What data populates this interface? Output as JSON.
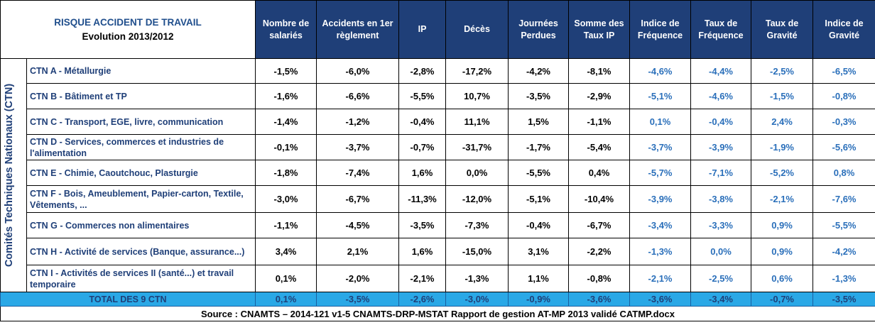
{
  "title": "RISQUE ACCIDENT DE TRAVAIL",
  "subtitle": "Evolution 2013/2012",
  "side_label": "Comités Techniques Nationaux  (CTN)",
  "columns": [
    "Nombre de salariés",
    "Accidents en 1er règlement",
    "IP",
    "Décès",
    "Journées Perdues",
    "Somme des Taux IP",
    "Indice de Fréquence",
    "Taux de Fréquence",
    "Taux de Gravité",
    "Indice de Gravité"
  ],
  "rows": [
    {
      "label": "CTN A - Métallurgie",
      "values": [
        "-1,5%",
        "-6,0%",
        "-2,8%",
        "-17,2%",
        "-4,2%",
        "-8,1%",
        "-4,6%",
        "-4,4%",
        "-2,5%",
        "-6,5%"
      ]
    },
    {
      "label": "CTN B - Bâtiment et TP",
      "values": [
        "-1,6%",
        "-6,6%",
        "-5,5%",
        "10,7%",
        "-3,5%",
        "-2,9%",
        "-5,1%",
        "-4,6%",
        "-1,5%",
        "-0,8%"
      ]
    },
    {
      "label": "CTN C - Transport, EGE, livre, communication",
      "values": [
        "-1,4%",
        "-1,2%",
        "-0,4%",
        "11,1%",
        "1,5%",
        "-1,1%",
        "0,1%",
        "-0,4%",
        "2,4%",
        "-0,3%"
      ]
    },
    {
      "label": "CTN D - Services, commerces et industries de l'alimentation",
      "values": [
        "-0,1%",
        "-3,7%",
        "-0,7%",
        "-31,7%",
        "-1,7%",
        "-5,4%",
        "-3,7%",
        "-3,9%",
        "-1,9%",
        "-5,6%"
      ]
    },
    {
      "label": "CTN E - Chimie, Caoutchouc, Plasturgie",
      "values": [
        "-1,8%",
        "-7,4%",
        "1,6%",
        "0,0%",
        "-5,5%",
        "0,4%",
        "-5,7%",
        "-7,1%",
        "-5,2%",
        "0,8%"
      ]
    },
    {
      "label": "CTN F - Bois, Ameublement, Papier-carton, Textile, Vêtements, ...",
      "values": [
        "-3,0%",
        "-6,7%",
        "-11,3%",
        "-12,0%",
        "-5,1%",
        "-10,4%",
        "-3,9%",
        "-3,8%",
        "-2,1%",
        "-7,6%"
      ]
    },
    {
      "label": "CTN G - Commerces non alimentaires",
      "values": [
        "-1,1%",
        "-4,5%",
        "-3,5%",
        "-7,3%",
        "-0,4%",
        "-6,7%",
        "-3,4%",
        "-3,3%",
        "0,9%",
        "-5,5%"
      ]
    },
    {
      "label": "CTN H - Activité de services (Banque, assurance...)",
      "values": [
        "3,4%",
        "2,1%",
        "1,6%",
        "-15,0%",
        "3,1%",
        "-2,2%",
        "-1,3%",
        "0,0%",
        "0,9%",
        "-4,2%"
      ]
    },
    {
      "label": "CTN I - Activités de services II (santé...) et travail temporaire",
      "values": [
        "0,1%",
        "-2,0%",
        "-2,1%",
        "-1,3%",
        "1,1%",
        "-0,8%",
        "-2,1%",
        "-2,5%",
        "0,6%",
        "-1,3%"
      ]
    }
  ],
  "total": {
    "label": "TOTAL DES 9 CTN",
    "values": [
      "0,1%",
      "-3,5%",
      "-2,6%",
      "-3,0%",
      "-0,9%",
      "-3,6%",
      "-3,6%",
      "-3,4%",
      "-0,7%",
      "-3,5%"
    ]
  },
  "source": "Source : CNAMTS – 2014-121 v1-5 CNAMTS-DRP-MSTAT Rapport de gestion AT-MP 2013 validé CATMP.docx"
}
